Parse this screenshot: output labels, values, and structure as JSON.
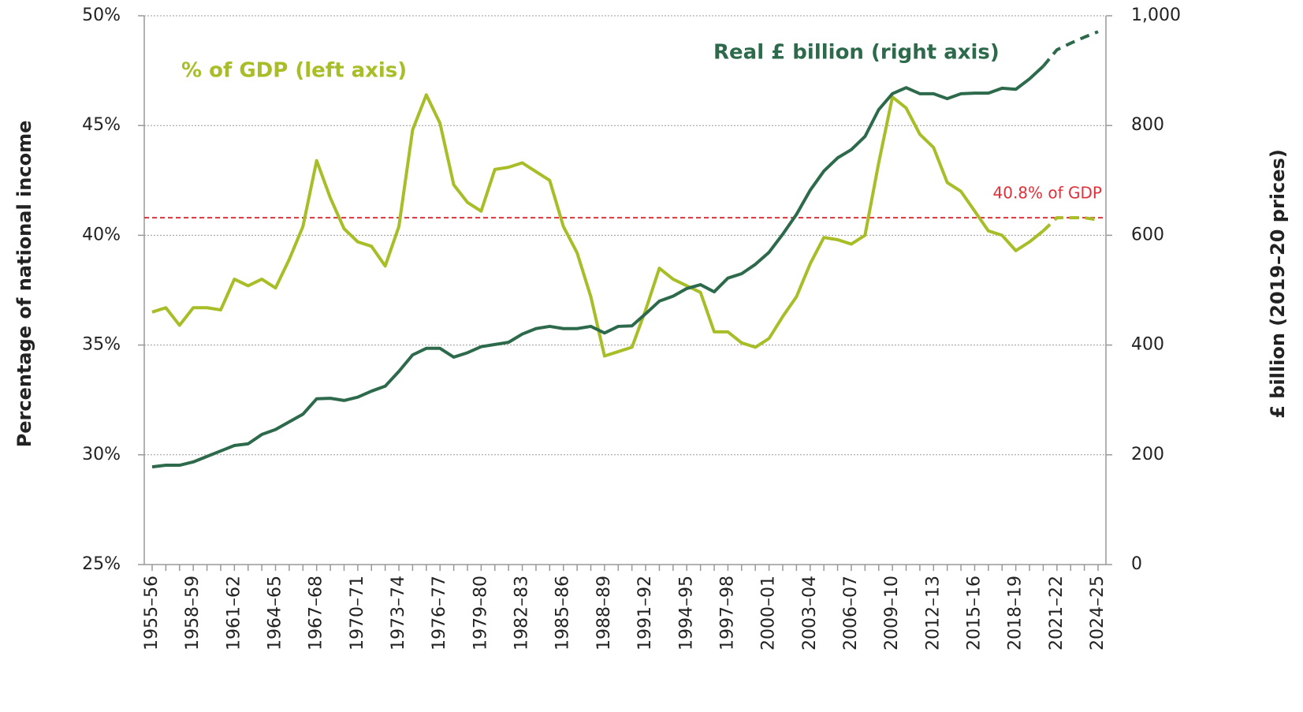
{
  "chart_data": {
    "type": "line",
    "y_title": "Percentage of national income",
    "y2_title": "£ billion (2019–20 prices)",
    "categories": [
      "1955–56",
      null,
      null,
      "1958–59",
      null,
      null,
      "1961–62",
      null,
      null,
      "1964–65",
      null,
      null,
      "1967–68",
      null,
      null,
      "1970–71",
      null,
      null,
      "1973–74",
      null,
      null,
      "1976–77",
      null,
      null,
      "1979–80",
      null,
      null,
      "1982–83",
      null,
      null,
      "1985–86",
      null,
      null,
      "1988–89",
      null,
      null,
      "1991–92",
      null,
      null,
      "1994–95",
      null,
      null,
      "1997–98",
      null,
      null,
      "2000–01",
      null,
      null,
      "2003–04",
      null,
      null,
      "2006–07",
      null,
      null,
      "2009–10",
      null,
      null,
      "2012–13",
      null,
      null,
      "2015–16",
      null,
      null,
      "2018–19",
      null,
      null,
      "2021–22",
      null,
      null,
      "2024–25"
    ],
    "ylim": [
      25,
      50
    ],
    "yticks": [
      {
        "value": 25,
        "label": "25%"
      },
      {
        "value": 30,
        "label": "30%"
      },
      {
        "value": 35,
        "label": "35%"
      },
      {
        "value": 40,
        "label": "40%"
      },
      {
        "value": 45,
        "label": "45%"
      },
      {
        "value": 50,
        "label": "50%"
      }
    ],
    "y2lim": [
      0,
      1000
    ],
    "y2ticks": [
      0,
      200,
      400,
      600,
      800,
      {
        "value": 1000,
        "label": "1,000"
      }
    ],
    "grid": true,
    "reference_line": {
      "value": 40.8,
      "label": "40.8% of GDP",
      "color": "#e0303a"
    },
    "series": [
      {
        "name": "% of GDP (left axis)",
        "color": "#a8bd26",
        "dashed_from": 65,
        "values": [
          36.5,
          36.7,
          35.9,
          36.7,
          36.7,
          36.6,
          38.0,
          37.7,
          38.0,
          37.6,
          38.9,
          40.4,
          43.4,
          41.7,
          40.3,
          39.7,
          39.5,
          38.6,
          40.4,
          44.8,
          46.4,
          45.1,
          42.3,
          41.5,
          41.1,
          43.0,
          43.1,
          43.3,
          42.9,
          42.5,
          40.4,
          39.2,
          37.2,
          34.5,
          34.7,
          34.9,
          36.6,
          38.5,
          38.0,
          37.7,
          37.4,
          35.6,
          35.6,
          35.1,
          34.9,
          35.3,
          36.3,
          37.2,
          38.7,
          39.9,
          39.8,
          39.6,
          40.0,
          43.3,
          46.3,
          45.8,
          44.6,
          44.0,
          42.4,
          42.0,
          41.1,
          40.2,
          40.0,
          39.3,
          39.7,
          40.2,
          40.8,
          40.8,
          40.8,
          40.7
        ]
      },
      {
        "name": "Real £ billion (right axis)",
        "color": "#2d6a4b",
        "axis": "y2",
        "dashed_from": 65,
        "values": [
          178,
          181,
          181,
          187,
          197,
          207,
          217,
          220,
          237,
          246,
          260,
          274,
          302,
          303,
          299,
          305,
          316,
          325,
          352,
          382,
          394,
          394,
          378,
          386,
          397,
          401,
          405,
          420,
          430,
          434,
          430,
          430,
          434,
          422,
          434,
          435,
          457,
          480,
          489,
          503,
          510,
          497,
          522,
          530,
          547,
          569,
          602,
          638,
          682,
          717,
          741,
          756,
          780,
          829,
          858,
          869,
          858,
          858,
          849,
          858,
          859,
          859,
          868,
          866,
          885,
          908,
          938,
          950,
          961,
          971
        ]
      }
    ]
  }
}
